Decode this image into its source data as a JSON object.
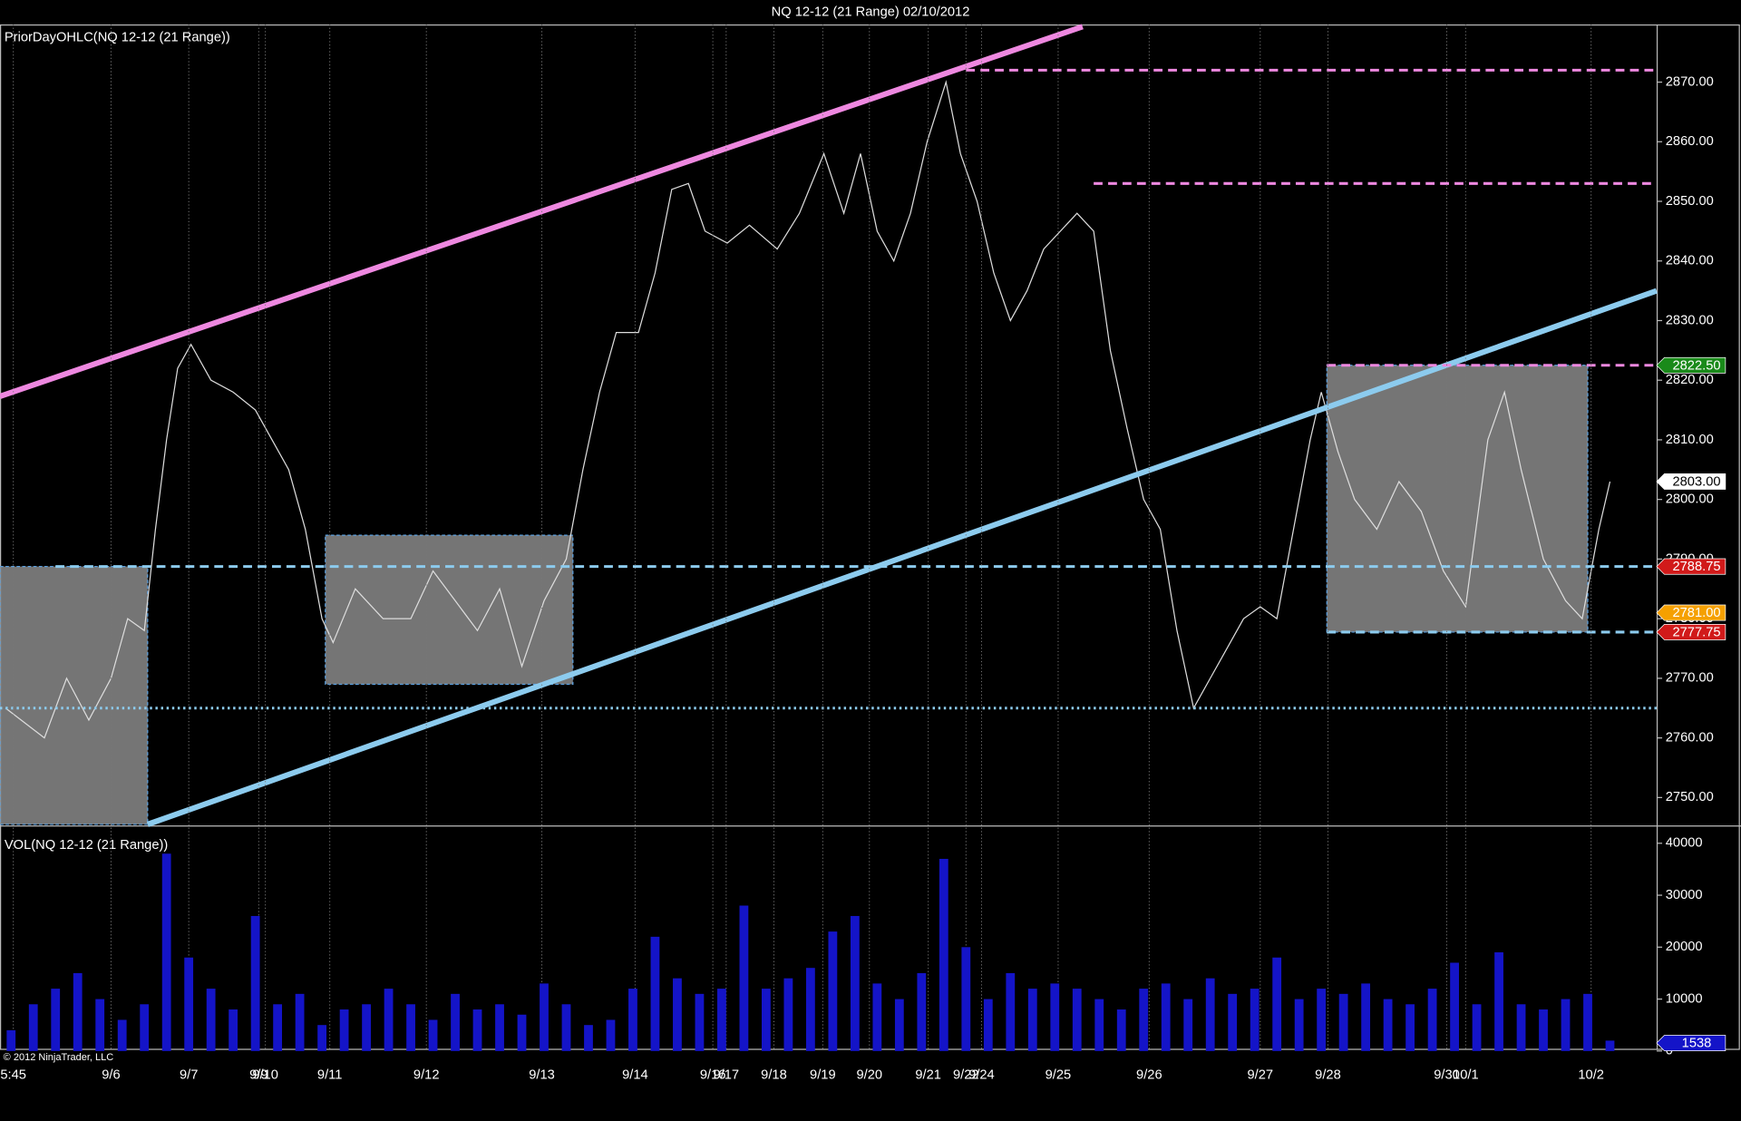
{
  "chart_data": [
    {
      "type": "line",
      "title": "NQ 12-12 (21 Range)  02/10/2012",
      "panel_label": "PriorDayOHLC(NQ 12-12 (21 Range))",
      "color": "#dddddd",
      "x": [
        5,
        40,
        60,
        80,
        100,
        115,
        130,
        140,
        150,
        160,
        172,
        190,
        210,
        230,
        245,
        260,
        275,
        290,
        300,
        320,
        345,
        370,
        390,
        410,
        430,
        450,
        470,
        490,
        510,
        525,
        540,
        555,
        575,
        590,
        605,
        620,
        635,
        655,
        675,
        700,
        720,
        742,
        760,
        775,
        790,
        805,
        820,
        835,
        852,
        865,
        880,
        895,
        910,
        925,
        940,
        955,
        970,
        985,
        1000,
        1015,
        1030,
        1045,
        1060,
        1075,
        1090,
        1105,
        1120,
        1135,
        1150,
        1165,
        1180,
        1190,
        1205,
        1220,
        1240,
        1260,
        1280,
        1300,
        1320,
        1340,
        1355,
        1370,
        1390,
        1410,
        1425,
        1440,
        1450
      ],
      "values": [
        2765,
        2760,
        2770,
        2763,
        2770,
        2780,
        2778,
        2795,
        2810,
        2822,
        2826,
        2820,
        2818,
        2815,
        2810,
        2805,
        2795,
        2780,
        2776,
        2785,
        2780,
        2780,
        2788,
        2783,
        2778,
        2785,
        2772,
        2783,
        2790,
        2805,
        2818,
        2828,
        2828,
        2838,
        2852,
        2853,
        2845,
        2843,
        2846,
        2842,
        2848,
        2858,
        2848,
        2858,
        2845,
        2840,
        2848,
        2860,
        2870,
        2858,
        2850,
        2838,
        2830,
        2835,
        2842,
        2845,
        2848,
        2845,
        2825,
        2812,
        2800,
        2795,
        2778,
        2765,
        2770,
        2775,
        2780,
        2782,
        2780,
        2795,
        2810,
        2818,
        2808,
        2800,
        2795,
        2803,
        2798,
        2788,
        2782,
        2810,
        2818,
        2805,
        2790,
        2783,
        2780,
        2795,
        2803
      ],
      "xlim": [
        0,
        1492
      ],
      "ylim": [
        2745.5,
        2879.3
      ],
      "yticks": [
        {
          "value": 2750,
          "label": "2750.00"
        },
        {
          "value": 2760,
          "label": "2760.00"
        },
        {
          "value": 2770,
          "label": "2770.00"
        },
        {
          "value": 2780,
          "label": "2780.00"
        },
        {
          "value": 2790,
          "label": "2790.00"
        },
        {
          "value": 2800,
          "label": "2800.00"
        },
        {
          "value": 2810,
          "label": "2810.00"
        },
        {
          "value": 2820,
          "label": "2820.00"
        },
        {
          "value": 2830,
          "label": "2830.00"
        },
        {
          "value": 2840,
          "label": "2840.00"
        },
        {
          "value": 2850,
          "label": "2850.00"
        },
        {
          "value": 2860,
          "label": "2860.00"
        },
        {
          "value": 2870,
          "label": "2870.00"
        }
      ],
      "boxes": [
        {
          "x": [
            0,
            133
          ],
          "y": [
            2745.5,
            2788.75
          ]
        },
        {
          "x": [
            293,
            516
          ],
          "y": [
            2769,
            2794
          ]
        },
        {
          "x": [
            1195,
            1430
          ],
          "y": [
            2777.75,
            2822.5
          ]
        }
      ],
      "trendlines": [
        {
          "x": [
            0,
            975
          ],
          "y": [
            2817.3,
            2879.3
          ],
          "color": "#ee88e0"
        },
        {
          "x": [
            133,
            1492
          ],
          "y": [
            2745.5,
            2835
          ],
          "color": "#8ccbee"
        }
      ],
      "levels": [
        {
          "value": 2872,
          "from": 870,
          "color": "#ee88e0",
          "style": "dashed"
        },
        {
          "value": 2853,
          "from": 985,
          "color": "#ee88e0",
          "style": "dashed"
        },
        {
          "value": 2822.5,
          "from": 1195,
          "color": "#ee88e0",
          "style": "dashed"
        },
        {
          "value": 2788.75,
          "from": 50,
          "color": "#8ccbee",
          "style": "dashed"
        },
        {
          "value": 2777.75,
          "from": 1195,
          "color": "#8ccbee",
          "style": "dashed"
        },
        {
          "value": 2765,
          "from": 0,
          "color": "#8ccbee",
          "style": "dotted"
        }
      ],
      "price_markers": [
        {
          "value": 2822.5,
          "label": "2822.50",
          "color": "#1a8a1a"
        },
        {
          "value": 2803,
          "label": "2803.00",
          "color": "#ffffff"
        },
        {
          "value": 2788.75,
          "label": "2788.75",
          "color": "#d11a1a"
        },
        {
          "value": 2781,
          "label": "2781.00",
          "color": "#f5a000"
        },
        {
          "value": 2777.75,
          "label": "2777.75",
          "color": "#d11a1a"
        }
      ]
    },
    {
      "type": "bar",
      "panel_label": "VOL(NQ 12-12 (21 Range))",
      "copyright": "© 2012 NinjaTrader, LLC",
      "color": "#1414c8",
      "x": [
        10,
        30,
        50,
        70,
        90,
        110,
        130,
        150,
        170,
        190,
        210,
        230,
        250,
        270,
        290,
        310,
        330,
        350,
        370,
        390,
        410,
        430,
        450,
        470,
        490,
        510,
        530,
        550,
        570,
        590,
        610,
        630,
        650,
        670,
        690,
        710,
        730,
        750,
        770,
        790,
        810,
        830,
        850,
        870,
        890,
        910,
        930,
        950,
        970,
        990,
        1010,
        1030,
        1050,
        1070,
        1090,
        1110,
        1130,
        1150,
        1170,
        1190,
        1210,
        1230,
        1250,
        1270,
        1290,
        1310,
        1330,
        1350,
        1370,
        1390,
        1410,
        1430,
        1450
      ],
      "values": [
        4000,
        9000,
        12000,
        15000,
        10000,
        6000,
        9000,
        38000,
        18000,
        12000,
        8000,
        26000,
        9000,
        11000,
        5000,
        8000,
        9000,
        12000,
        9000,
        6000,
        11000,
        8000,
        9000,
        7000,
        13000,
        9000,
        5000,
        6000,
        12000,
        22000,
        14000,
        11000,
        12000,
        28000,
        12000,
        14000,
        16000,
        23000,
        26000,
        13000,
        10000,
        15000,
        37000,
        20000,
        10000,
        15000,
        12000,
        13000,
        12000,
        10000,
        8000,
        12000,
        13000,
        10000,
        14000,
        11000,
        12000,
        18000,
        10000,
        12000,
        11000,
        13000,
        10000,
        9000,
        12000,
        17000,
        9000,
        19000,
        9000,
        8000,
        10000,
        11000,
        2000
      ],
      "xlim": [
        0,
        1492
      ],
      "ylim": [
        0,
        43000
      ],
      "yticks": [
        0,
        10000,
        20000,
        30000,
        40000
      ],
      "xticks": [
        {
          "value": 12,
          "label": "5:45"
        },
        {
          "value": 100,
          "label": "9/6"
        },
        {
          "value": 170,
          "label": "9/7"
        },
        {
          "value": 233,
          "label": "9/9"
        },
        {
          "value": 239,
          "label": "9/10"
        },
        {
          "value": 297,
          "label": "9/11"
        },
        {
          "value": 384,
          "label": "9/12"
        },
        {
          "value": 488,
          "label": "9/13"
        },
        {
          "value": 572,
          "label": "9/14"
        },
        {
          "value": 642,
          "label": "9/16"
        },
        {
          "value": 654,
          "label": "9/17"
        },
        {
          "value": 697,
          "label": "9/18"
        },
        {
          "value": 741,
          "label": "9/19"
        },
        {
          "value": 783,
          "label": "9/20"
        },
        {
          "value": 836,
          "label": "9/21"
        },
        {
          "value": 870,
          "label": "9/22"
        },
        {
          "value": 884,
          "label": "9/24"
        },
        {
          "value": 953,
          "label": "9/25"
        },
        {
          "value": 1035,
          "label": "9/26"
        },
        {
          "value": 1135,
          "label": "9/27"
        },
        {
          "value": 1196,
          "label": "9/28"
        },
        {
          "value": 1303,
          "label": "9/30"
        },
        {
          "value": 1320,
          "label": "10/1"
        },
        {
          "value": 1433,
          "label": "10/2"
        }
      ],
      "price_markers": [
        {
          "value": 1538,
          "label": "1538",
          "color": "#1414c8"
        }
      ]
    }
  ]
}
